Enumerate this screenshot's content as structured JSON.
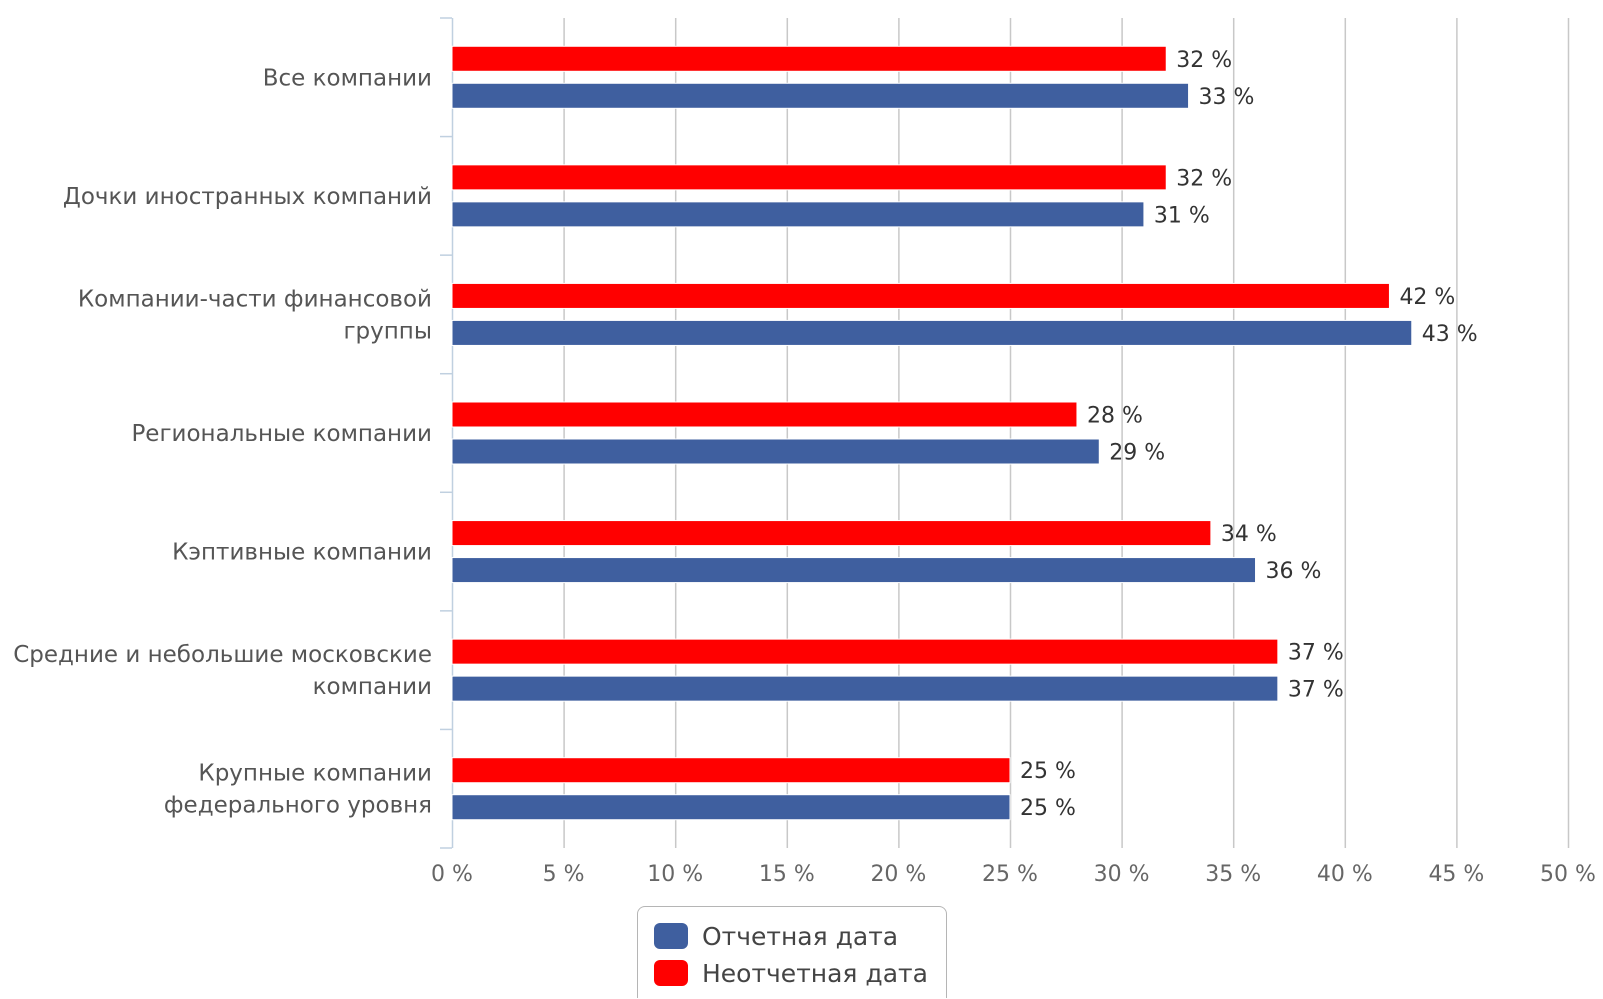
{
  "chart_data": {
    "type": "bar",
    "orientation": "horizontal",
    "categories": [
      "Все компании",
      "Дочки иностранных компаний",
      "Компании-части финансовой группы",
      "Региональные компании",
      "Кэптивные компании",
      "Средние и небольшие московские компании",
      "Крупные компании федерального уровня"
    ],
    "category_lines": [
      [
        "Все компании"
      ],
      [
        "Дочки иностранных компаний"
      ],
      [
        "Компании-части финансовой",
        "группы"
      ],
      [
        "Региональные компании"
      ],
      [
        "Кэптивные компании"
      ],
      [
        "Средние и небольшие московские",
        "компании"
      ],
      [
        "Крупные компании",
        "федерального уровня"
      ]
    ],
    "series": [
      {
        "name": "Неотчетная дата",
        "color": "#ff0000",
        "values": [
          32,
          32,
          42,
          28,
          34,
          37,
          25
        ],
        "labels": [
          "32 %",
          "32 %",
          "42 %",
          "28 %",
          "34 %",
          "37 %",
          "25 %"
        ]
      },
      {
        "name": "Отчетная дата",
        "color": "#3f5f9f",
        "values": [
          33,
          31,
          43,
          29,
          36,
          37,
          25
        ],
        "labels": [
          "33 %",
          "31 %",
          "43 %",
          "29 %",
          "36 %",
          "37 %",
          "25 %"
        ]
      }
    ],
    "xlim": [
      0,
      50
    ],
    "x_ticks": [
      0,
      5,
      10,
      15,
      20,
      25,
      30,
      35,
      40,
      45,
      50
    ],
    "x_tick_labels": [
      "0 %",
      "5 %",
      "10 %",
      "15 %",
      "20 %",
      "25 %",
      "30 %",
      "35 %",
      "40 %",
      "45 %",
      "50 %"
    ],
    "grid": true,
    "legend": {
      "position": "bottom",
      "items": [
        {
          "label": "Отчетная дата",
          "color": "#3f5f9f"
        },
        {
          "label": "Неотчетная дата",
          "color": "#ff0000"
        }
      ]
    }
  }
}
